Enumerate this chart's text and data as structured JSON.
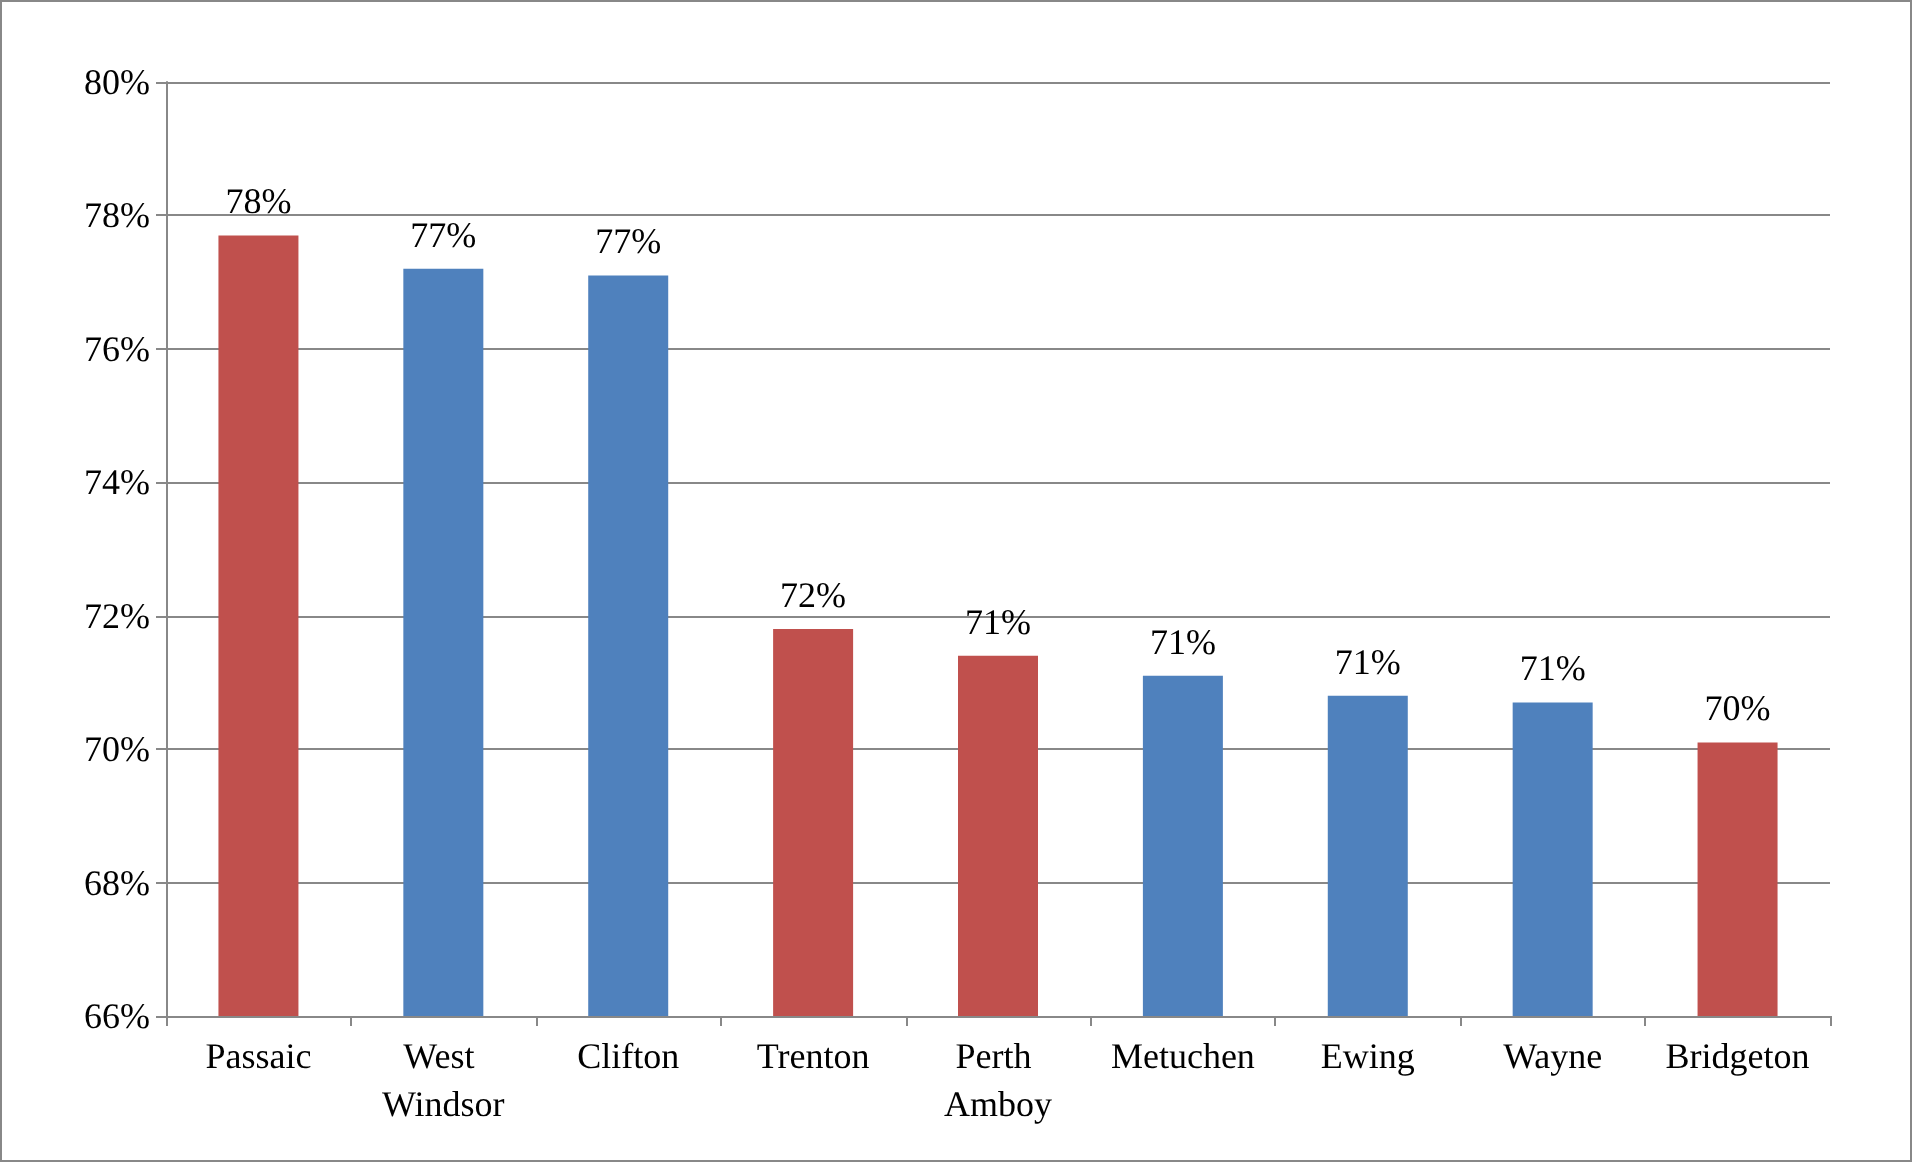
{
  "chart_data": {
    "type": "bar",
    "categories": [
      "Passaic",
      "West Windsor",
      "Clifton",
      "Trenton",
      "Perth Amboy",
      "Metuchen",
      "Ewing",
      "Wayne",
      "Bridgeton"
    ],
    "values": [
      77.7,
      77.2,
      77.1,
      71.8,
      71.4,
      71.1,
      70.8,
      70.7,
      70.1
    ],
    "colors": [
      "#c0504d",
      "#4f81bd",
      "#4f81bd",
      "#c0504d",
      "#c0504d",
      "#4f81bd",
      "#4f81bd",
      "#4f81bd",
      "#c0504d"
    ],
    "value_labels": [
      "78%",
      "77%",
      "77%",
      "72%",
      "71%",
      "71%",
      "71%",
      "71%",
      "70%"
    ],
    "ylim": [
      66,
      80
    ],
    "yticks": [
      {
        "value": 66,
        "label": "66%"
      },
      {
        "value": 68,
        "label": "68%"
      },
      {
        "value": 70,
        "label": "70%"
      },
      {
        "value": 72,
        "label": "72%"
      },
      {
        "value": 74,
        "label": "74%"
      },
      {
        "value": 76,
        "label": "76%"
      },
      {
        "value": 78,
        "label": "78%"
      },
      {
        "value": 80,
        "label": "80%"
      }
    ],
    "grid": "y"
  }
}
